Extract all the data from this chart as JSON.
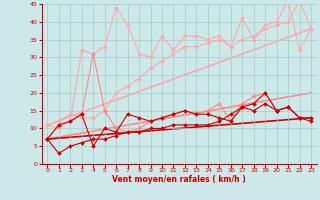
{
  "xlabel": "Vent moyen/en rafales ( km/h )",
  "background_color": "#cce8e8",
  "grid_color": "#aacccc",
  "xlim": [
    -0.5,
    23.5
  ],
  "ylim": [
    0,
    45
  ],
  "yticks": [
    0,
    5,
    10,
    15,
    20,
    25,
    30,
    35,
    40,
    45
  ],
  "xticks": [
    0,
    1,
    2,
    3,
    4,
    5,
    6,
    7,
    8,
    9,
    10,
    11,
    12,
    13,
    14,
    15,
    16,
    17,
    18,
    19,
    20,
    21,
    22,
    23
  ],
  "series": [
    {
      "x": [
        0,
        1,
        2,
        3,
        4,
        5,
        6,
        7,
        8,
        9,
        10,
        11,
        12,
        13,
        14,
        15,
        16,
        17,
        18,
        19,
        20,
        21,
        22,
        23
      ],
      "y": [
        11,
        10,
        12,
        32,
        31,
        33,
        44,
        39,
        31,
        30,
        36,
        32,
        36,
        36,
        35,
        36,
        33,
        41,
        35,
        39,
        40,
        46,
        32,
        38
      ],
      "color": "#ffaaaa",
      "linewidth": 0.8,
      "marker": "D",
      "markersize": 2.0,
      "zorder": 2
    },
    {
      "x": [
        0,
        1,
        2,
        3,
        4,
        5,
        6,
        7,
        8,
        9,
        10,
        11,
        12,
        13,
        14,
        15,
        16,
        17,
        18,
        19,
        20,
        21,
        22,
        23
      ],
      "y": [
        11,
        12,
        14,
        13,
        13,
        15,
        20,
        22,
        24,
        27,
        29,
        31,
        33,
        33,
        34,
        35,
        33,
        35,
        36,
        38,
        39,
        40,
        46,
        38
      ],
      "color": "#ffaaaa",
      "linewidth": 0.8,
      "marker": "D",
      "markersize": 2.0,
      "zorder": 2
    },
    {
      "x": [
        0,
        23
      ],
      "y": [
        11,
        38
      ],
      "color": "#ffaaaa",
      "linewidth": 1.2,
      "marker": null,
      "zorder": 1
    },
    {
      "x": [
        0,
        1,
        2,
        3,
        4,
        5,
        6,
        7,
        8,
        9,
        10,
        11,
        12,
        13,
        14,
        15,
        16,
        17,
        18,
        19,
        20,
        21,
        22,
        23
      ],
      "y": [
        7,
        11,
        12,
        14,
        31,
        15,
        10,
        9,
        10,
        12,
        13,
        14,
        15,
        14,
        15,
        17,
        12,
        17,
        19,
        20,
        15,
        16,
        13,
        13
      ],
      "color": "#ff8888",
      "linewidth": 0.8,
      "marker": "D",
      "markersize": 2.0,
      "zorder": 3
    },
    {
      "x": [
        0,
        23
      ],
      "y": [
        7,
        20
      ],
      "color": "#ff8888",
      "linewidth": 1.2,
      "marker": null,
      "zorder": 1
    },
    {
      "x": [
        0,
        1,
        2,
        3,
        4,
        5,
        6,
        7,
        8,
        9,
        10,
        11,
        12,
        13,
        14,
        15,
        16,
        17,
        18,
        19,
        20,
        21,
        22,
        23
      ],
      "y": [
        7,
        11,
        12,
        14,
        5,
        10,
        9,
        14,
        13,
        12,
        13,
        14,
        15,
        14,
        14,
        13,
        12,
        16,
        17,
        20,
        15,
        16,
        13,
        13
      ],
      "color": "#cc0000",
      "linewidth": 0.8,
      "marker": "D",
      "markersize": 2.0,
      "zorder": 4
    },
    {
      "x": [
        0,
        1,
        2,
        3,
        4,
        5,
        6,
        7,
        8,
        9,
        10,
        11,
        12,
        13,
        14,
        15,
        16,
        17,
        18,
        19,
        20,
        21,
        22,
        23
      ],
      "y": [
        7,
        3,
        5,
        6,
        7,
        7,
        8,
        9,
        9,
        10,
        10,
        11,
        11,
        11,
        11,
        12,
        14,
        16,
        15,
        17,
        15,
        16,
        13,
        12
      ],
      "color": "#cc0000",
      "linewidth": 0.8,
      "marker": "D",
      "markersize": 2.0,
      "zorder": 4
    },
    {
      "x": [
        0,
        23
      ],
      "y": [
        7,
        13
      ],
      "color": "#cc0000",
      "linewidth": 1.2,
      "marker": null,
      "zorder": 1
    }
  ]
}
